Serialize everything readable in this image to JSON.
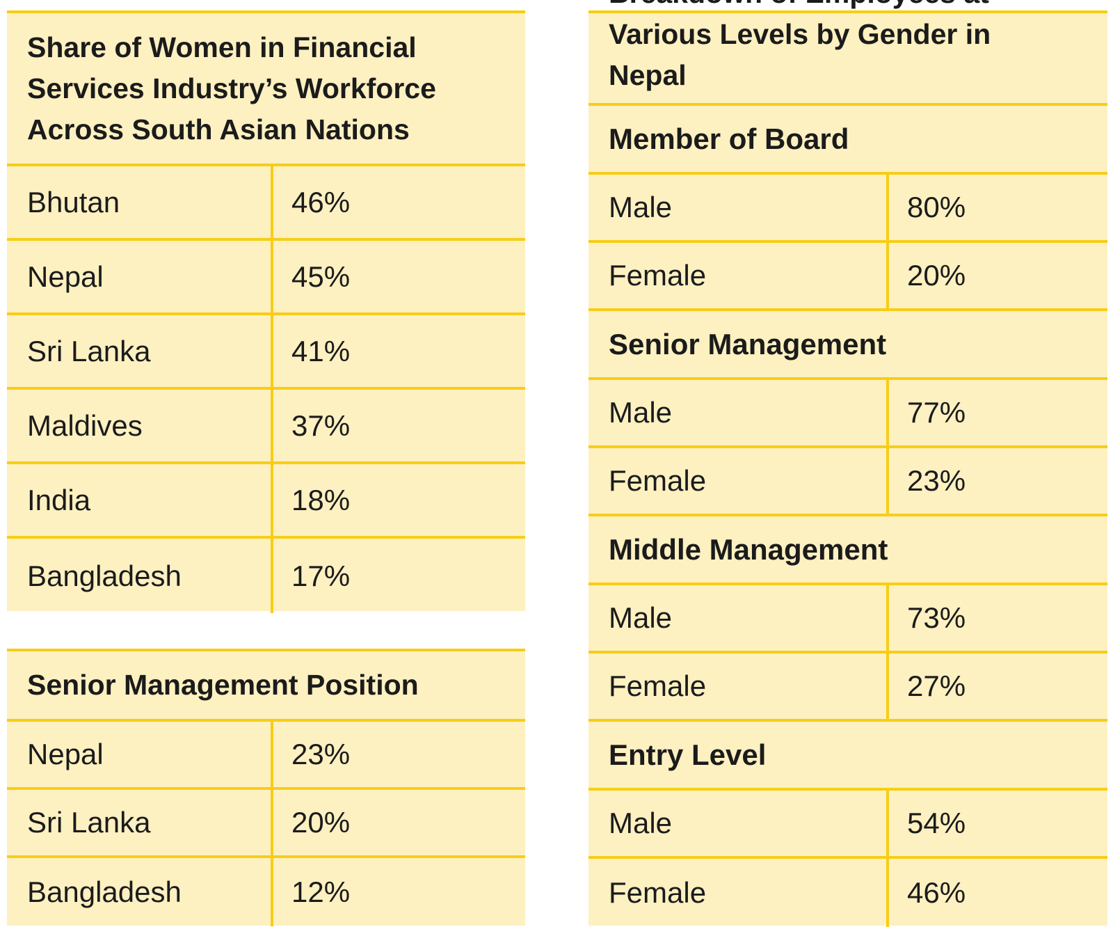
{
  "women_share": {
    "title": "Share of Women in Financial Services Industry’s Workforce Across South Asian Nations",
    "rows": [
      {
        "country": "Bhutan",
        "value": "46%"
      },
      {
        "country": "Nepal",
        "value": "45%"
      },
      {
        "country": "Sri Lanka",
        "value": "41%"
      },
      {
        "country": "Maldives",
        "value": "37%"
      },
      {
        "country": "India",
        "value": "18%"
      },
      {
        "country": "Bangladesh",
        "value": "17%"
      }
    ]
  },
  "senior_management_position": {
    "title": "Senior Management Position",
    "rows": [
      {
        "country": "Nepal",
        "value": "23%"
      },
      {
        "country": "Sri Lanka",
        "value": "20%"
      },
      {
        "country": "Bangladesh",
        "value": "12%"
      }
    ]
  },
  "nepal_breakdown": {
    "title": "Breakdown of Employees at Various Levels by Gender in Nepal",
    "sections": [
      {
        "label": "Member of Board",
        "rows": [
          {
            "gender": "Male",
            "value": "80%"
          },
          {
            "gender": "Female",
            "value": "20%"
          }
        ]
      },
      {
        "label": "Senior Management",
        "rows": [
          {
            "gender": "Male",
            "value": "77%"
          },
          {
            "gender": "Female",
            "value": "23%"
          }
        ]
      },
      {
        "label": "Middle Management",
        "rows": [
          {
            "gender": "Male",
            "value": "73%"
          },
          {
            "gender": "Female",
            "value": "27%"
          }
        ]
      },
      {
        "label": "Entry Level",
        "rows": [
          {
            "gender": "Male",
            "value": "54%"
          },
          {
            "gender": "Female",
            "value": "46%"
          }
        ]
      }
    ]
  },
  "colors": {
    "accent_border": "#f7cd16",
    "cell_background": "#fdf0c1",
    "text": "#1b1b1b"
  }
}
